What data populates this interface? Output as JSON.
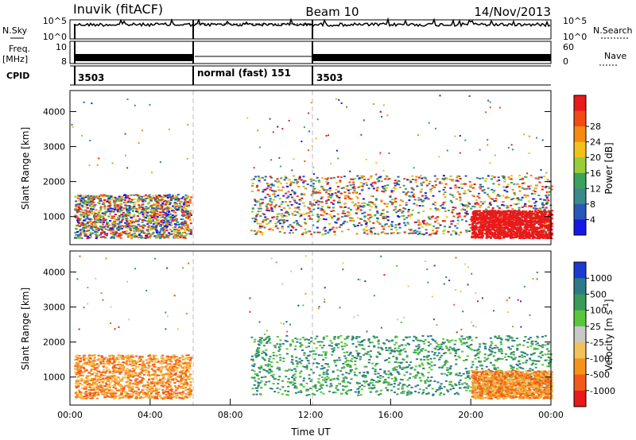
{
  "header": {
    "station": "Inuvik (fitACF)",
    "beam": "Beam 10",
    "date": "14/Nov/2013"
  },
  "strips": {
    "nsky_label": "N.Sky",
    "nsky_ticks": [
      "10^5",
      "10^0"
    ],
    "nsearch_label": "N.Search",
    "nsearch_ticks": [
      "10^5",
      "10^0"
    ],
    "freq_label": "Freq.",
    "freq_unit": "[MHz]",
    "freq_ticks": [
      "10",
      "8"
    ],
    "nave_label": "Nave",
    "nave_ticks": [
      "60",
      "0"
    ],
    "cpid_label": "CPID",
    "cpid_segments": [
      {
        "label": "3503",
        "start": 0,
        "end": 6
      },
      {
        "label": "normal (fast) 151",
        "start": 6,
        "end": 12
      },
      {
        "label": "3503",
        "start": 12,
        "end": 24
      }
    ]
  },
  "chart_data": [
    {
      "type": "heatmap",
      "name": "power",
      "ylabel": "Slant Range [km]",
      "ylim": [
        200,
        4600
      ],
      "yticks": [
        "1000",
        "2000",
        "3000",
        "4000"
      ],
      "xlim": [
        0,
        24
      ],
      "colorbar_label": "Power [dB]",
      "colorbar_ticks": [
        "4",
        "8",
        "12",
        "16",
        "20",
        "24",
        "28"
      ],
      "colorbar_colors": [
        "#1818e6",
        "#2858b8",
        "#3a8a8a",
        "#3aa25a",
        "#9acb3a",
        "#f2c21a",
        "#f58a12",
        "#f24a12",
        "#e81a1a"
      ],
      "scatter_regions": [
        {
          "t0": 0.2,
          "t1": 6.0,
          "r0": 400,
          "r1": 1650
        },
        {
          "t0": 9.0,
          "t1": 24.0,
          "r0": 500,
          "r1": 2200
        },
        {
          "t0": 20.0,
          "t1": 24.0,
          "r0": 400,
          "r1": 1200
        }
      ]
    },
    {
      "type": "heatmap",
      "name": "velocity",
      "ylabel": "Slant Range [km]",
      "ylim": [
        200,
        4600
      ],
      "yticks": [
        "1000",
        "2000",
        "3000",
        "4000"
      ],
      "xlim": [
        0,
        24
      ],
      "xlabel": "Time UT",
      "xticks": [
        "00:00",
        "04:00",
        "08:00",
        "12:00",
        "16:00",
        "20:00",
        "00:00"
      ],
      "colorbar_label": "Velocity [m s",
      "colorbar_label_sup": "-1",
      "colorbar_label_end": "]",
      "colorbar_ticks": [
        "1000",
        "500",
        "100",
        "25",
        "-25",
        "-100",
        "-500",
        "-1000"
      ],
      "colorbar_colors": [
        "#1a3ad0",
        "#2a7a8a",
        "#3a9a5a",
        "#58c83a",
        "#c8c8c8",
        "#f2c25a",
        "#f5921a",
        "#f25a1a",
        "#e81a1a"
      ],
      "scatter_regions": [
        {
          "t0": 0.2,
          "t1": 6.0,
          "r0": 400,
          "r1": 1650
        },
        {
          "t0": 9.0,
          "t1": 24.0,
          "r0": 500,
          "r1": 2200
        },
        {
          "t0": 20.0,
          "t1": 24.0,
          "r0": 400,
          "r1": 1200
        }
      ]
    }
  ]
}
